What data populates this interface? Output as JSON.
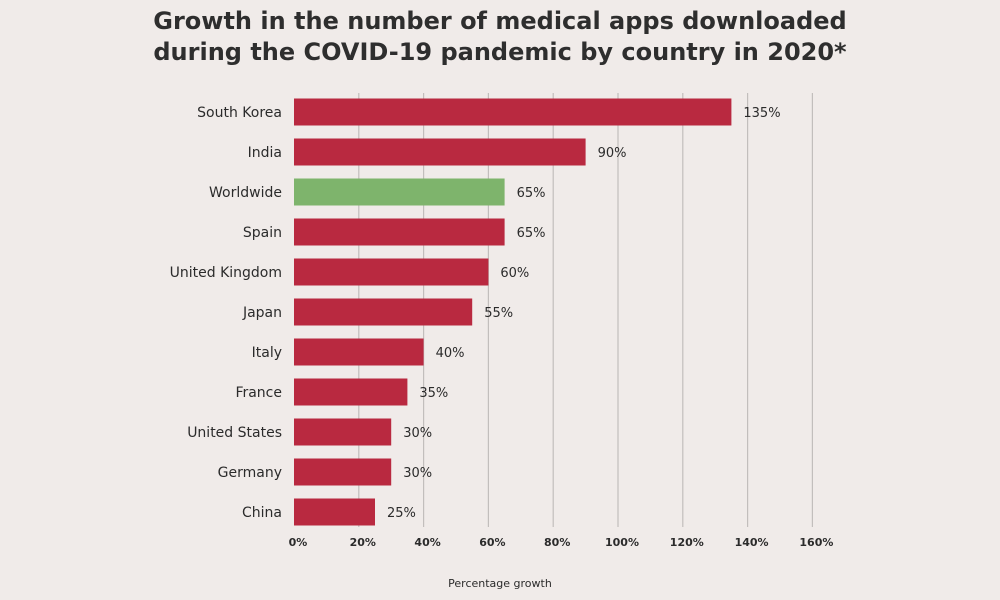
{
  "chart_data": {
    "type": "bar",
    "orientation": "horizontal",
    "title_lines": [
      "Growth in the number of medical apps downloaded",
      "during the COVID-19 pandemic by country in 2020*"
    ],
    "categories": [
      "South Korea",
      "India",
      "Worldwide",
      "Spain",
      "United Kingdom",
      "Japan",
      "Italy",
      "France",
      "United States",
      "Germany",
      "China"
    ],
    "values": [
      135,
      90,
      65,
      65,
      60,
      55,
      40,
      35,
      30,
      30,
      25
    ],
    "value_labels": [
      "135%",
      "90%",
      "65%",
      "65%",
      "60%",
      "55%",
      "40%",
      "35%",
      "30%",
      "30%",
      "25%"
    ],
    "highlight_category": "Worldwide",
    "xlabel": "Percentage growth",
    "ylabel": "",
    "xlim": [
      0,
      160
    ],
    "x_ticks": [
      0,
      20,
      40,
      60,
      80,
      100,
      120,
      140,
      160
    ],
    "x_tick_labels": [
      "0%",
      "20%",
      "40%",
      "60%",
      "80%",
      "100%",
      "120%",
      "140%",
      "160%"
    ],
    "grid": "vertical",
    "legend": "none",
    "colors": {
      "bar": "#b92940",
      "highlight_bar": "#7eb46c",
      "gridline": "#c2bebc",
      "background": "#f0ebe9",
      "text": "#2b2b2b"
    }
  }
}
